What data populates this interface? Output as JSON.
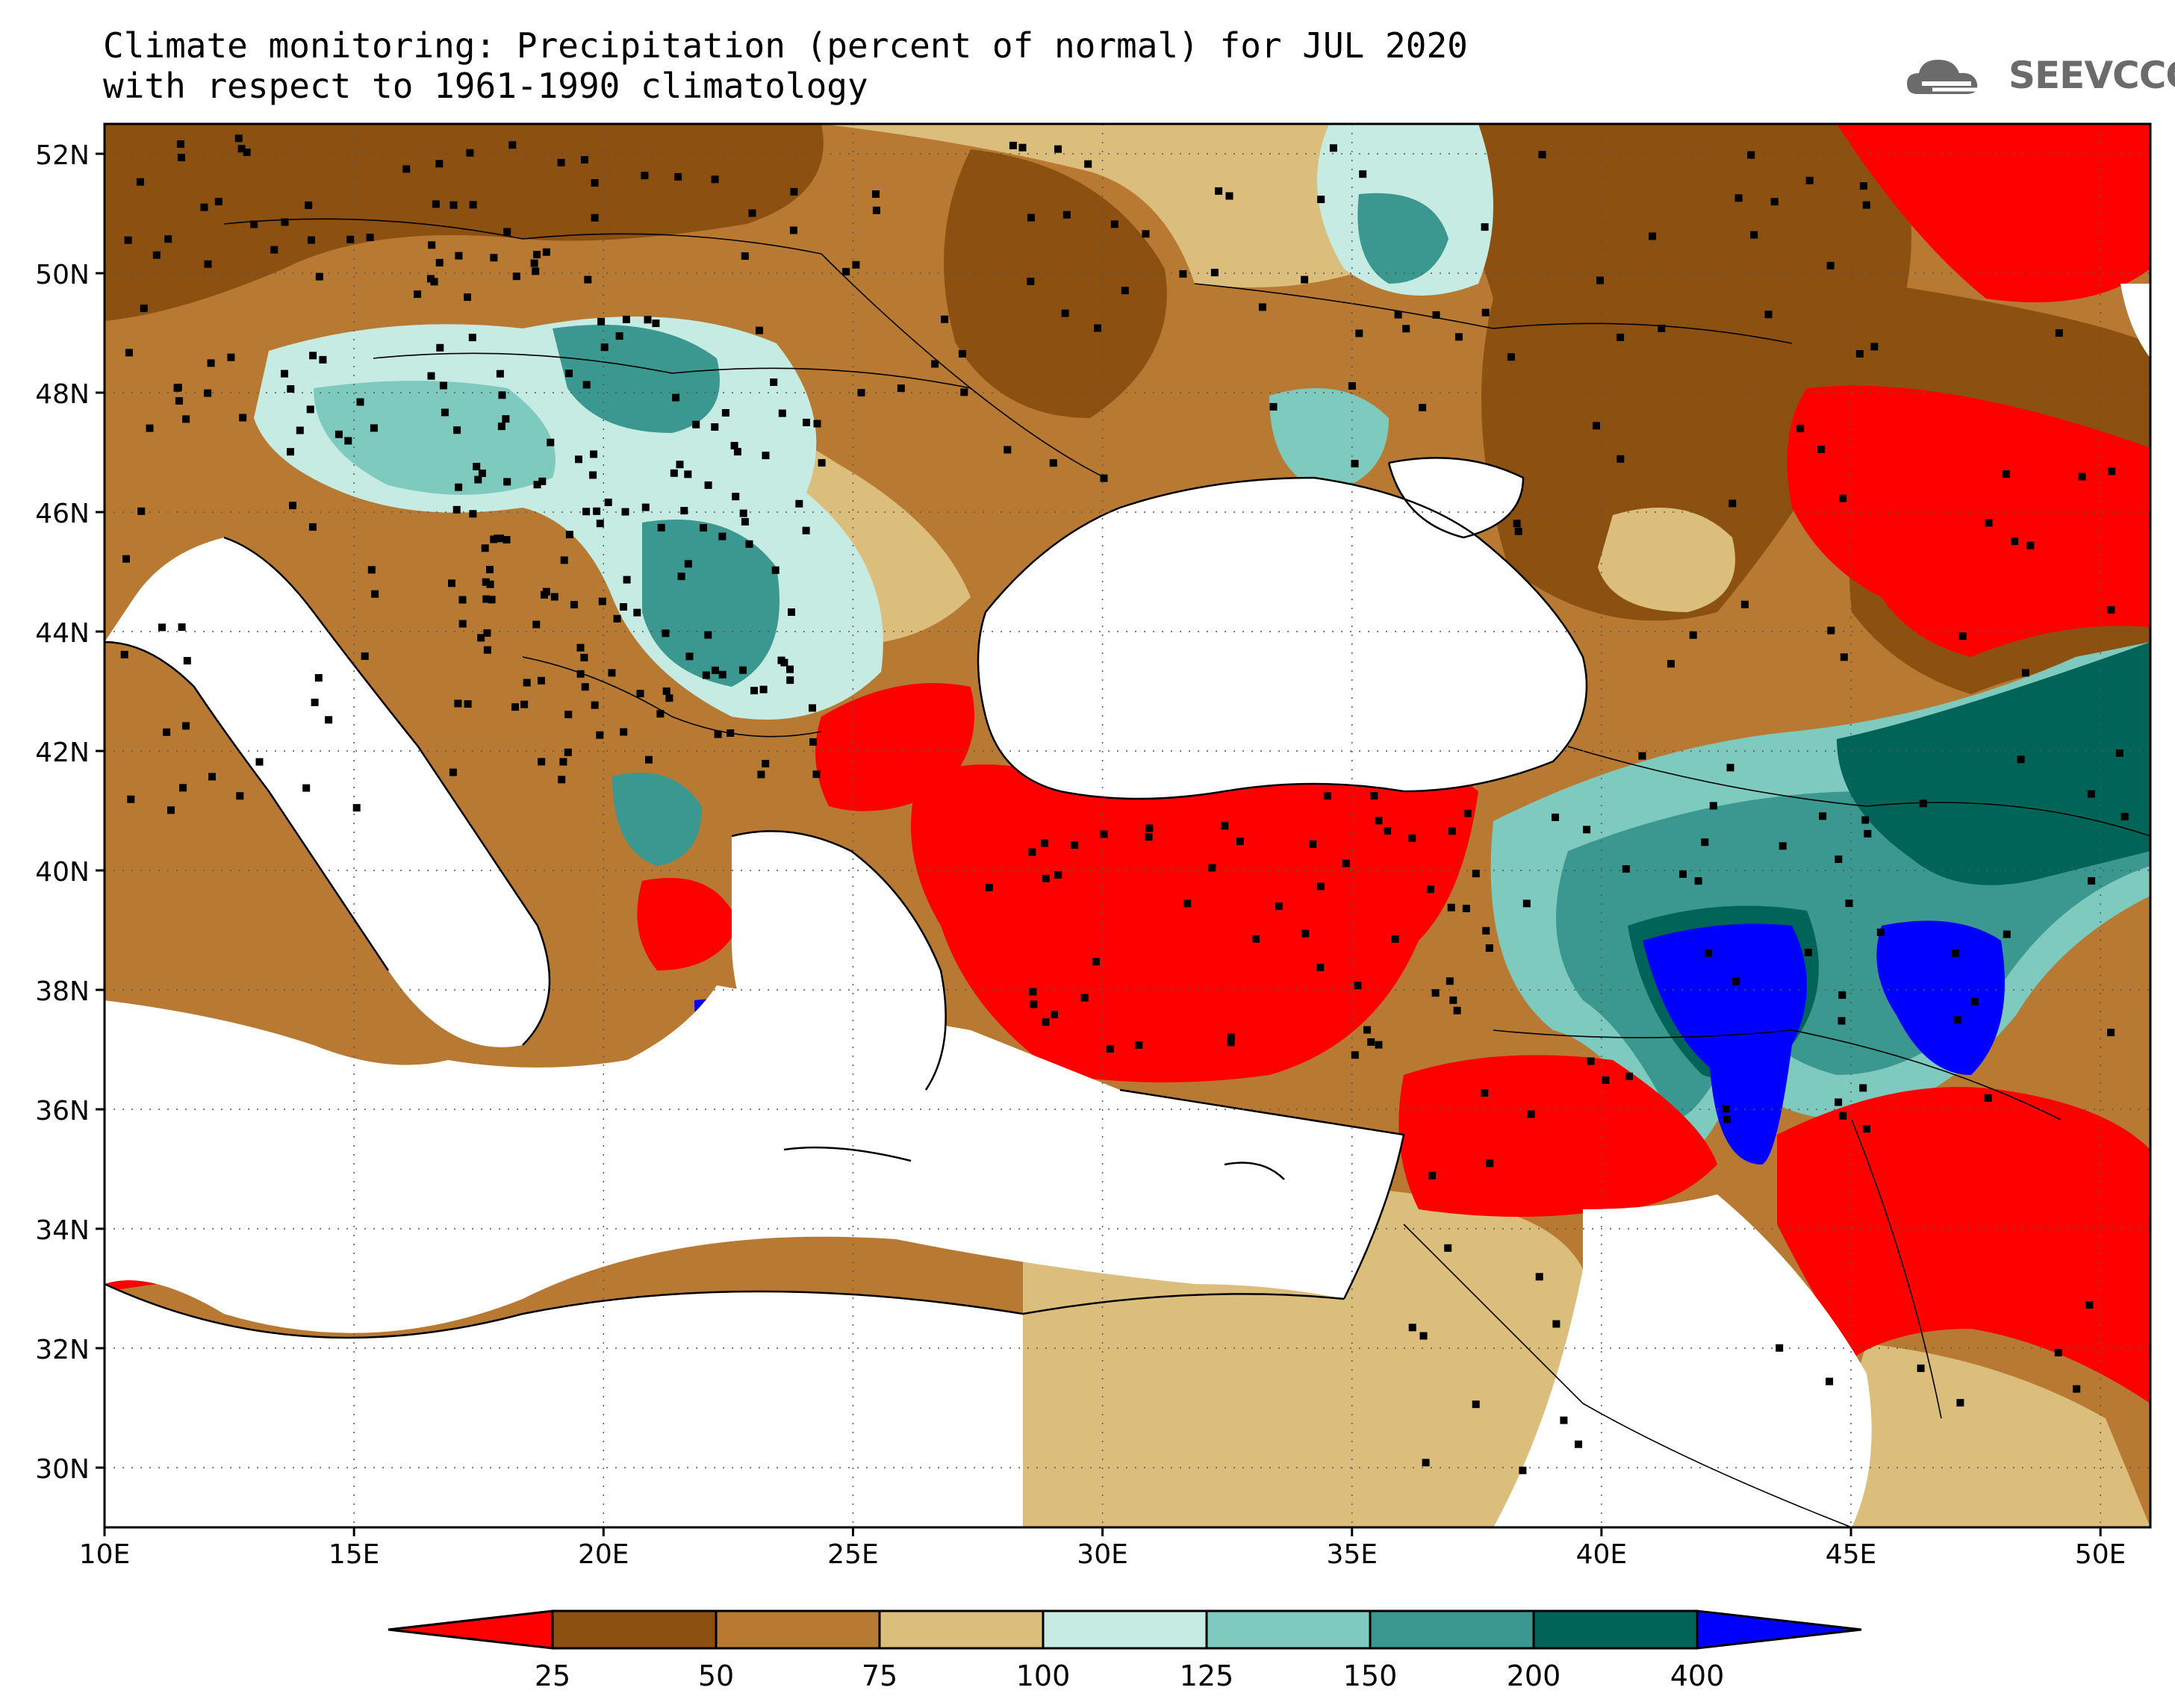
{
  "title": {
    "line1": "Climate monitoring: Precipitation (percent of normal) for JUL 2020",
    "line2": "with respect to 1961-1990 climatology"
  },
  "logo": {
    "text": "SEEVCCC",
    "icon": "cloud-icon"
  },
  "axes": {
    "lat_ticks": [
      "52N",
      "50N",
      "48N",
      "46N",
      "44N",
      "42N",
      "40N",
      "38N",
      "36N",
      "34N",
      "32N",
      "30N"
    ],
    "lon_ticks": [
      "10E",
      "15E",
      "20E",
      "25E",
      "30E",
      "35E",
      "40E",
      "45E",
      "50E"
    ],
    "lat_range": [
      29,
      52.5
    ],
    "lon_range": [
      10,
      51
    ]
  },
  "legend": {
    "colors": [
      "#ff0000",
      "#8c5010",
      "#b87a32",
      "#dcbe7c",
      "#c6ebe2",
      "#7fcabe",
      "#3a9890",
      "#006458",
      "#0000ff"
    ],
    "labels": [
      "25",
      "50",
      "75",
      "100",
      "125",
      "150",
      "200",
      "400"
    ]
  },
  "colors": {
    "land_outline": "#000000",
    "sea": "#ffffff"
  }
}
